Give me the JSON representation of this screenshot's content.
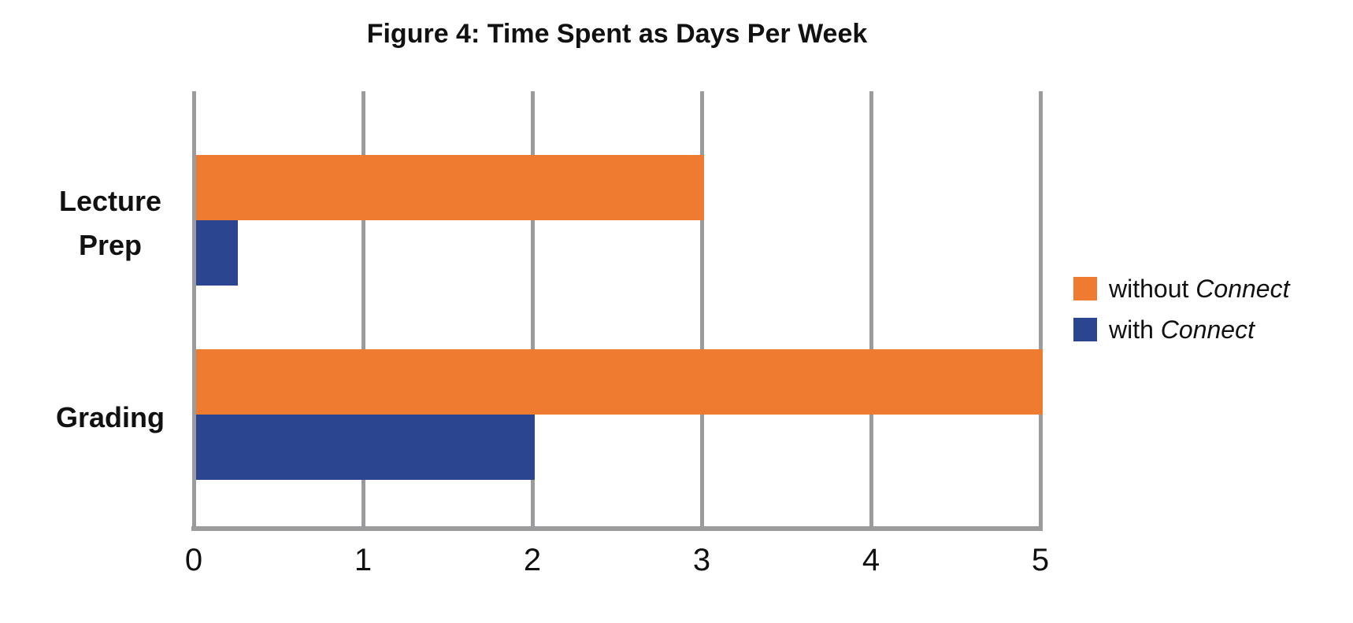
{
  "title": "Figure 4: Time Spent as Days Per Week",
  "colors": {
    "without_connect": "#EF7B30",
    "with_connect": "#2B4590",
    "gridline": "#9B9B9E",
    "text": "#111111",
    "background": "#FFFFFF"
  },
  "chart_data": {
    "type": "bar",
    "orientation": "horizontal",
    "title": "Figure 4: Time Spent as Days Per Week",
    "categories": [
      "Lecture Prep",
      "Grading"
    ],
    "category_lines": [
      [
        "Lecture",
        "Prep"
      ],
      [
        "Grading"
      ]
    ],
    "series": [
      {
        "name": "without Connect",
        "label_regular": "without ",
        "label_italic": "Connect",
        "color": "#EF7B30",
        "values": [
          3,
          5
        ]
      },
      {
        "name": "with Connect",
        "label_regular": "with ",
        "label_italic": "Connect",
        "color": "#2B4590",
        "values": [
          0.25,
          2
        ]
      }
    ],
    "xlabel": "",
    "ylabel": "",
    "xlim": [
      0,
      5
    ],
    "x_ticks": [
      0,
      1,
      2,
      3,
      4,
      5
    ],
    "x_tick_labels": [
      "0",
      "1",
      "2",
      "3",
      "4",
      "5"
    ],
    "grid": "vertical-gridlines",
    "legend_position": "right",
    "units": "days per week"
  }
}
